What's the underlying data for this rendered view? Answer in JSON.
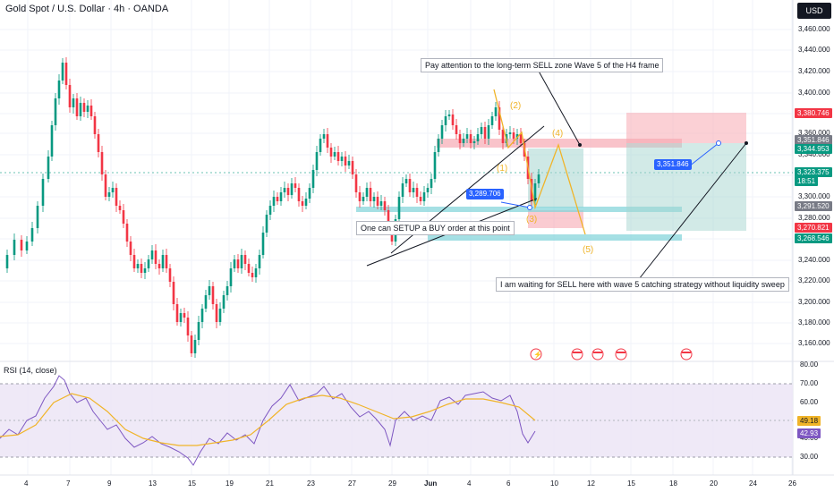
{
  "header": {
    "symbol_title": "Gold Spot / U.S. Dollar · 4h · OANDA",
    "currency": "USD"
  },
  "price_axis": {
    "ticks": [
      "3,460.000",
      "3,440.000",
      "3,420.000",
      "3,400.000",
      "3,380.000",
      "3,360.000",
      "3,340.000",
      "3,320.000",
      "3,300.000",
      "3,280.000",
      "3,260.000",
      "3,240.000",
      "3,220.000",
      "3,200.000",
      "3,180.000",
      "3,160.000"
    ],
    "tags": [
      {
        "label": "3,380.746",
        "color": "#f23645"
      },
      {
        "label": "3,351.846",
        "color": "#787b86"
      },
      {
        "label": "3,344.953",
        "color": "#089981"
      },
      {
        "label": "3,323.375",
        "color": "#089981"
      },
      {
        "label": "18:51",
        "color": "#089981"
      },
      {
        "label": "3,291.520",
        "color": "#787b86"
      },
      {
        "label": "3,270.821",
        "color": "#f23645"
      },
      {
        "label": "3,268.546",
        "color": "#089981"
      }
    ]
  },
  "rsi": {
    "title": "RSI (14, close)",
    "ticks": [
      "80.00",
      "70.00",
      "60.00",
      "50.00",
      "40.00",
      "30.00"
    ],
    "tags": [
      {
        "label": "49.18",
        "color": "#f0b429",
        "text_color": "#131722"
      },
      {
        "label": "42.93",
        "color": "#7e57c2",
        "text_color": "#ffffff"
      }
    ]
  },
  "time_axis": {
    "labels": [
      "4",
      "7",
      "9",
      "13",
      "15",
      "19",
      "21",
      "23",
      "27",
      "29",
      "Jun",
      "4",
      "6",
      "10",
      "12",
      "15",
      "18",
      "20",
      "24",
      "26"
    ]
  },
  "annotations": {
    "callout_sell_zone": "Pay attention to the long-term SELL zone Wave 5 of the H4 frame",
    "callout_buy": "One can SETUP a BUY order at this point",
    "callout_waiting": "I am waiting for SELL here with wave 5 catching strategy without liquidity sweep",
    "tag_left": "3,289.706",
    "tag_right": "3,351.846",
    "waves": [
      "(1)",
      "(2)",
      "(3)",
      "(4)",
      "(5)"
    ]
  },
  "colors": {
    "bull": "#089981",
    "bear": "#f23645",
    "wave": "#f0b429",
    "rsi_line": "#7e57c2",
    "rsi_ma": "#f0b429",
    "rsi_band": "#ede7f6"
  }
}
